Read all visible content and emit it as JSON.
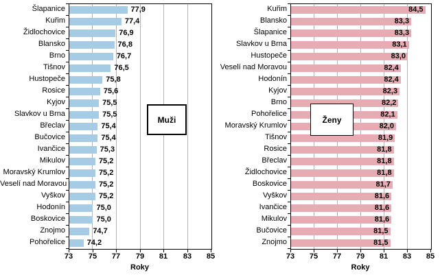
{
  "colors": {
    "background": "#FFFFFF",
    "axis": "#000000",
    "gridline": "#B3B3B3",
    "men_bar": "#A5CBE5",
    "women_bar": "#E7ACB3",
    "text": "#000000"
  },
  "chart_data": [
    {
      "type": "bar",
      "orientation": "horizontal",
      "legend": "Muži",
      "xlabel": "Roky",
      "xlim": [
        73,
        85
      ],
      "xticks": [
        "73",
        "75",
        "77",
        "79",
        "81",
        "83",
        "85"
      ],
      "grid": true,
      "bar_color": "#A5CBE5",
      "value_label_position": "outside-end",
      "categories": [
        "Šlapanice",
        "Kuřim",
        "Židlochovice",
        "Blansko",
        "Brno",
        "Tišnov",
        "Hustopeče",
        "Rosice",
        "Kyjov",
        "Slavkov u Brna",
        "Břeclav",
        "Bučovice",
        "Ivančice",
        "Mikulov",
        "Moravský Krumlov",
        "Veselí nad Moravou",
        "Vyškov",
        "Hodonín",
        "Boskovice",
        "Znojmo",
        "Pohořelice"
      ],
      "values": [
        77.9,
        77.4,
        76.9,
        76.8,
        76.7,
        76.5,
        75.8,
        75.6,
        75.5,
        75.5,
        75.4,
        75.4,
        75.3,
        75.2,
        75.2,
        75.2,
        75.2,
        75.0,
        75.0,
        74.7,
        74.2
      ],
      "value_labels": [
        "77,9",
        "77,4",
        "76,9",
        "76,8",
        "76,7",
        "76,5",
        "75,8",
        "75,6",
        "75,5",
        "75,5",
        "75,4",
        "75,4",
        "75,3",
        "75,2",
        "75,2",
        "75,2",
        "75,2",
        "75,0",
        "75,0",
        "74,7",
        "74,2"
      ]
    },
    {
      "type": "bar",
      "orientation": "horizontal",
      "legend": "Ženy",
      "xlabel": "Roky",
      "xlim": [
        73,
        85
      ],
      "xticks": [
        "73",
        "75",
        "77",
        "79",
        "81",
        "83",
        "85"
      ],
      "grid": true,
      "bar_color": "#E7ACB3",
      "value_label_position": "inside-end",
      "categories": [
        "Kuřim",
        "Blansko",
        "Šlapanice",
        "Slavkov u Brna",
        "Hustopeče",
        "Veselí nad Moravou",
        "Hodonín",
        "Kyjov",
        "Brno",
        "Pohořelice",
        "Moravský Krumlov",
        "Tišnov",
        "Rosice",
        "Břeclav",
        "Židlochovice",
        "Boskovice",
        "Vyškov",
        "Ivančice",
        "Mikulov",
        "Bučovice",
        "Znojmo"
      ],
      "values": [
        84.5,
        83.3,
        83.3,
        83.1,
        83.0,
        82.4,
        82.4,
        82.3,
        82.2,
        82.1,
        82.0,
        81.9,
        81.8,
        81.8,
        81.8,
        81.7,
        81.6,
        81.6,
        81.6,
        81.5,
        81.5
      ],
      "value_labels": [
        "84,5",
        "83,3",
        "83,3",
        "83,1",
        "83,0",
        "82,4",
        "82,4",
        "82,3",
        "82,2",
        "82,1",
        "82,0",
        "81,9",
        "81,8",
        "81,8",
        "81,8",
        "81,7",
        "81,6",
        "81,6",
        "81,6",
        "81,5",
        "81,5"
      ]
    }
  ]
}
